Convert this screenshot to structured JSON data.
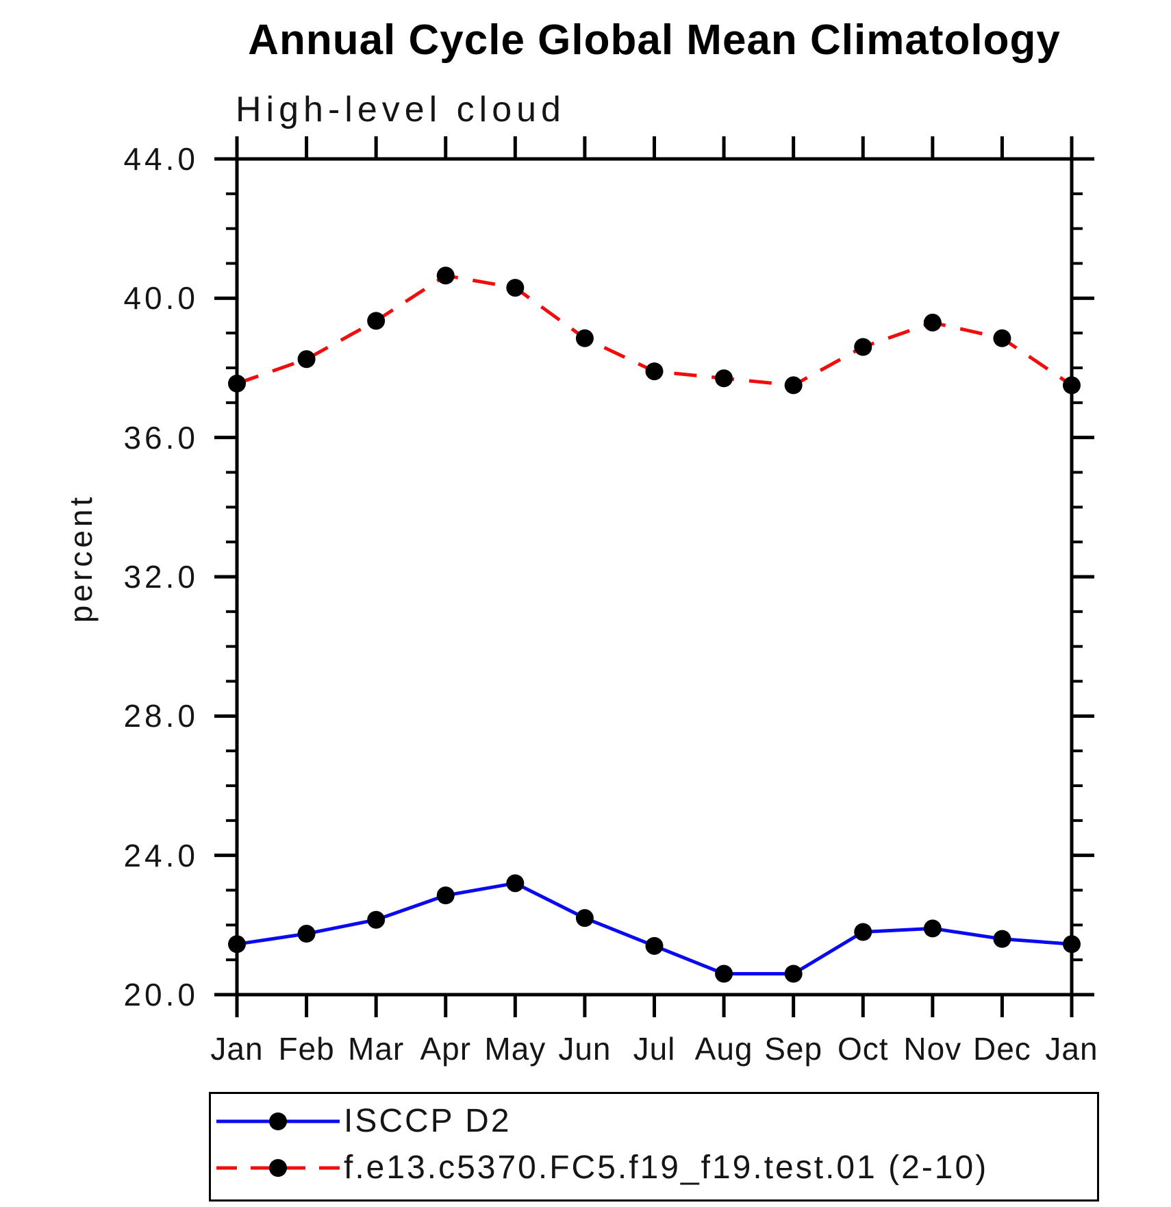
{
  "chart_data": {
    "type": "line",
    "title": "Annual Cycle Global Mean Climatology",
    "subtitle": "High-level cloud",
    "ylabel": "percent",
    "xlabel": "",
    "categories": [
      "Jan",
      "Feb",
      "Mar",
      "Apr",
      "May",
      "Jun",
      "Jul",
      "Aug",
      "Sep",
      "Oct",
      "Nov",
      "Dec",
      "Jan"
    ],
    "ylim": [
      20.0,
      44.0
    ],
    "ytick_major": [
      20,
      24,
      28,
      32,
      36,
      40,
      44
    ],
    "ytick_major_labels": [
      "20.0",
      "24.0",
      "28.0",
      "32.0",
      "36.0",
      "40.0",
      "44.0"
    ],
    "ytick_minor_interval": 1.0,
    "grid": false,
    "legend_position": "bottom",
    "frame_color": "#000000",
    "marker_color": "#000000",
    "series": [
      {
        "name": "ISCCP D2",
        "color": "#0a0af0",
        "style": "solid",
        "marker": "circle",
        "values": [
          21.45,
          21.75,
          22.15,
          22.85,
          23.2,
          22.2,
          21.4,
          20.6,
          20.6,
          21.8,
          21.9,
          21.6,
          21.45
        ]
      },
      {
        "name": "f.e13.c5370.FC5.f19_f19.test.01 (2-10)",
        "color": "#f20c0c",
        "style": "dashed",
        "marker": "circle",
        "values": [
          37.55,
          38.25,
          39.35,
          40.65,
          40.3,
          38.85,
          37.9,
          37.7,
          37.5,
          38.6,
          39.3,
          38.85,
          37.5
        ]
      }
    ]
  }
}
